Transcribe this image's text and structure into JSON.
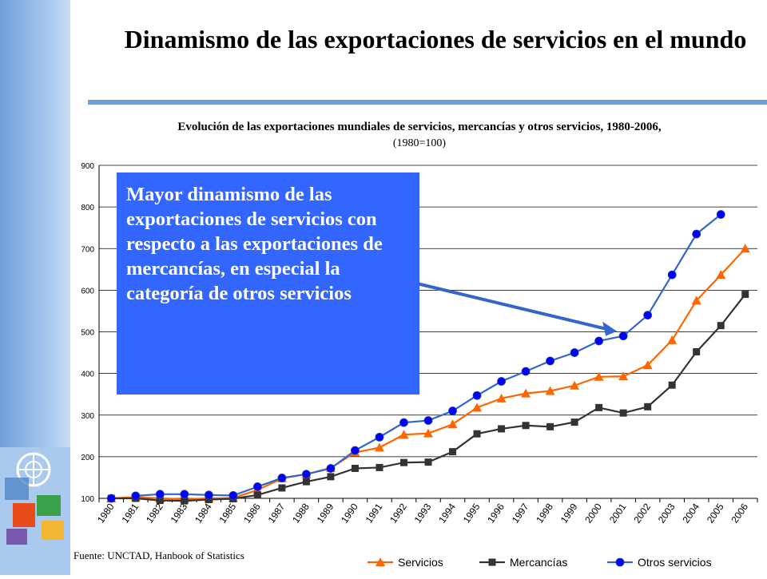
{
  "slide": {
    "title": "Dinamismo de las exportaciones de servicios en el mundo",
    "callout": "Mayor dinamismo de las exportaciones de servicios con respecto a las exportaciones de mercancías, en especial la categoría de otros servicios",
    "source": "Fuente: UNCTAD, Hanbook of Statistics"
  },
  "colors": {
    "servicios": "#ff6600",
    "mercancias": "#333333",
    "otros": "#3366cc",
    "otros_marker": "#0000ff",
    "callout_bg": "#3366ff"
  },
  "chart_data": {
    "type": "line",
    "title": "Evolución de las exportaciones mundiales de servicios, mercancías y otros servicios, 1980-2006,",
    "subtitle": "(1980=100)",
    "xlabel": "",
    "ylabel": "",
    "ylim": [
      100,
      900
    ],
    "yticks": [
      100,
      200,
      300,
      400,
      500,
      600,
      700,
      800,
      900
    ],
    "grid": true,
    "legend_position": "bottom",
    "categories": [
      "1980",
      "1981",
      "1982",
      "1983",
      "1984",
      "1985",
      "1986",
      "1987",
      "1988",
      "1989",
      "1990",
      "1991",
      "1992",
      "1993",
      "1994",
      "1995",
      "1996",
      "1997",
      "1998",
      "1999",
      "2000",
      "2001",
      "2002",
      "2003",
      "2004",
      "2005",
      "2006"
    ],
    "series": [
      {
        "name": "Servicios",
        "marker": "triangle",
        "values": [
          100,
          103,
          100,
          98,
          100,
          101,
          120,
          148,
          158,
          173,
          210,
          222,
          253,
          256,
          278,
          318,
          340,
          352,
          358,
          371,
          392,
          393,
          420,
          480,
          575,
          637,
          700
        ]
      },
      {
        "name": "Mercancías",
        "marker": "square",
        "values": [
          100,
          100,
          95,
          94,
          97,
          99,
          108,
          125,
          140,
          152,
          172,
          174,
          186,
          187,
          212,
          255,
          267,
          275,
          272,
          283,
          318,
          305,
          320,
          372,
          452,
          515,
          590
        ]
      },
      {
        "name": "Otros servicios",
        "marker": "circle",
        "values": [
          null,
          106,
          110,
          110,
          108,
          107,
          128,
          149,
          158,
          172,
          215,
          247,
          282,
          287,
          310,
          347,
          381,
          405,
          430,
          450,
          478,
          490,
          540,
          637,
          735,
          782,
          null
        ]
      }
    ]
  }
}
